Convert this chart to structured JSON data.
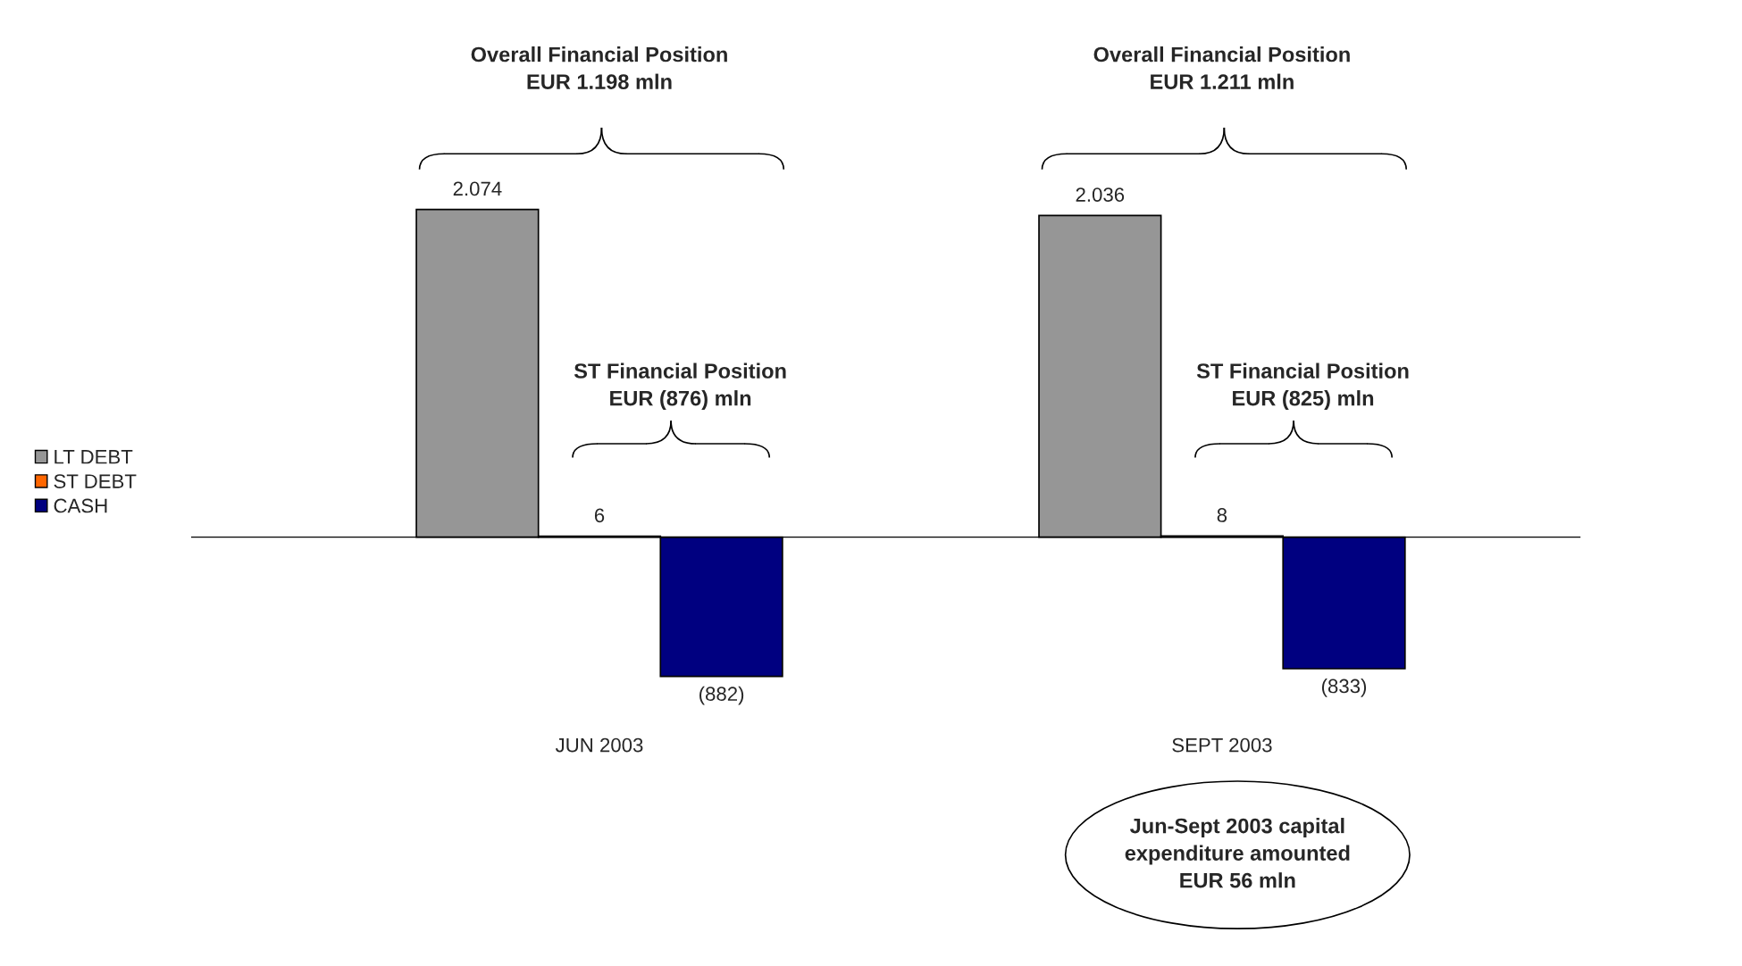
{
  "chart_data": {
    "type": "bar",
    "categories": [
      "JUN 2003",
      "SEPT 2003"
    ],
    "series": [
      {
        "name": "LT DEBT",
        "color": "#969696",
        "values": [
          2074,
          2036
        ],
        "value_labels": [
          "2.074",
          "2.036"
        ]
      },
      {
        "name": "ST DEBT",
        "color": "#ff6600",
        "values": [
          6,
          8
        ],
        "value_labels": [
          "6",
          "8"
        ]
      },
      {
        "name": "CASH",
        "color": "#000080",
        "values": [
          -882,
          -833
        ],
        "value_labels": [
          "(882)",
          "(833)"
        ]
      }
    ],
    "annotations": [
      "Overall Financial Position\nEUR 1.198 mln",
      "ST Financial Position\nEUR (876) mln",
      "Overall Financial Position\nEUR 1.211 mln",
      "ST Financial Position\nEUR (825) mln",
      "Jun-Sept 2003 capital\nexpenditure amounted\nEUR 56 mln"
    ],
    "legend": "left"
  }
}
